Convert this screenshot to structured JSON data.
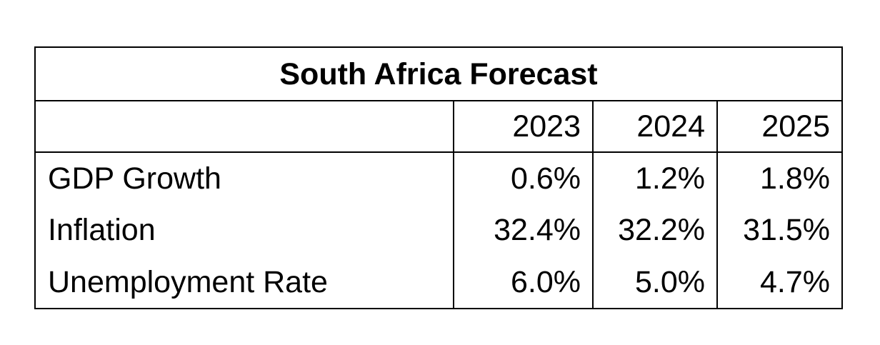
{
  "chart_data": {
    "type": "table",
    "title": "South Africa Forecast",
    "columns": [
      "2023",
      "2024",
      "2025"
    ],
    "rows": [
      {
        "label": "GDP Growth",
        "values": [
          "0.6%",
          "1.2%",
          "1.8%"
        ]
      },
      {
        "label": "Inflation",
        "values": [
          "32.4%",
          "32.2%",
          "31.5%"
        ]
      },
      {
        "label": "Unemployment Rate",
        "values": [
          "6.0%",
          "5.0%",
          "4.7%"
        ]
      }
    ]
  }
}
